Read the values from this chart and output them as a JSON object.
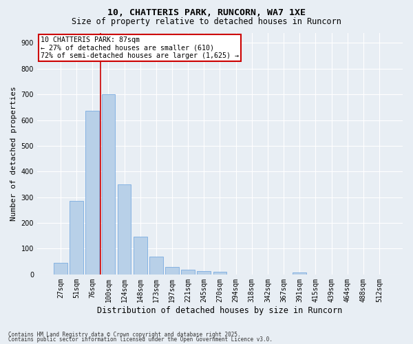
{
  "title1": "10, CHATTERIS PARK, RUNCORN, WA7 1XE",
  "title2": "Size of property relative to detached houses in Runcorn",
  "xlabel": "Distribution of detached houses by size in Runcorn",
  "ylabel": "Number of detached properties",
  "categories": [
    "27sqm",
    "51sqm",
    "76sqm",
    "100sqm",
    "124sqm",
    "148sqm",
    "173sqm",
    "197sqm",
    "221sqm",
    "245sqm",
    "270sqm",
    "294sqm",
    "318sqm",
    "342sqm",
    "367sqm",
    "391sqm",
    "415sqm",
    "439sqm",
    "464sqm",
    "488sqm",
    "512sqm"
  ],
  "values": [
    45,
    285,
    635,
    700,
    350,
    148,
    70,
    30,
    17,
    12,
    10,
    0,
    0,
    0,
    0,
    8,
    0,
    0,
    0,
    0,
    0
  ],
  "bar_color": "#b8d0e8",
  "bar_edge_color": "#7aabe0",
  "vline_x": 2.5,
  "vline_color": "#cc0000",
  "annotation_text": "10 CHATTERIS PARK: 87sqm\n← 27% of detached houses are smaller (610)\n72% of semi-detached houses are larger (1,625) →",
  "annotation_box_color": "#ffffff",
  "annotation_box_edge": "#cc0000",
  "ylim": [
    0,
    940
  ],
  "yticks": [
    0,
    100,
    200,
    300,
    400,
    500,
    600,
    700,
    800,
    900
  ],
  "footnote1": "Contains HM Land Registry data © Crown copyright and database right 2025.",
  "footnote2": "Contains public sector information licensed under the Open Government Licence v3.0.",
  "bg_color": "#e8eef4",
  "plot_bg_color": "#e8eef4",
  "grid_color": "#ffffff",
  "title1_fontsize": 9.5,
  "title2_fontsize": 8.5,
  "xlabel_fontsize": 8.5,
  "ylabel_fontsize": 8.0,
  "tick_fontsize": 7.0,
  "annot_fontsize": 7.2,
  "footnote_fontsize": 5.5
}
